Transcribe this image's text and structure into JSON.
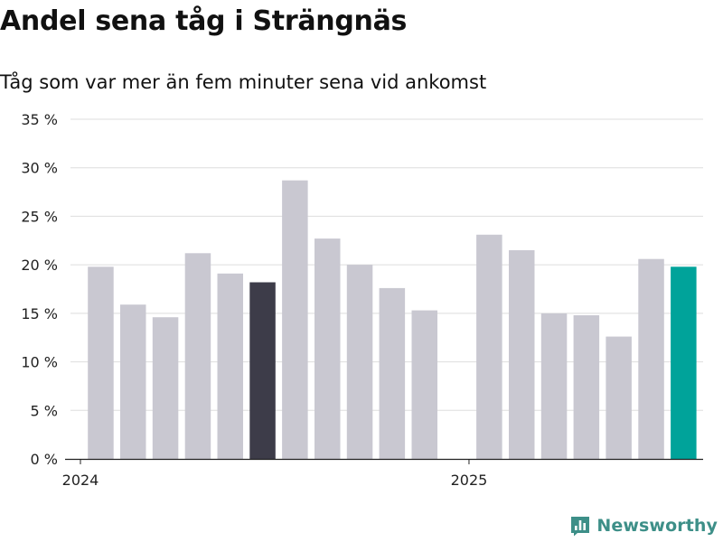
{
  "title": "Andel sena tåg i Strängnäs",
  "subtitle": "Tåg som var mer än fem minuter sena vid ankomst",
  "brand": {
    "name": "Newsworthy",
    "icon": "newsworthy-logo-icon",
    "color": "#3d8f88"
  },
  "chart_data": {
    "type": "bar",
    "x": [
      "2024-01",
      "2024-02",
      "2024-03",
      "2024-04",
      "2024-05",
      "2024-06",
      "2024-07",
      "2024-08",
      "2024-09",
      "2024-10",
      "2024-11",
      "2025-01",
      "2025-02",
      "2025-03",
      "2025-04",
      "2025-05",
      "2025-06",
      "2025-07"
    ],
    "values": [
      19.8,
      15.9,
      14.6,
      21.2,
      19.1,
      18.2,
      28.7,
      22.7,
      20.0,
      17.6,
      15.3,
      23.1,
      21.5,
      15.0,
      14.8,
      12.6,
      20.6,
      19.8
    ],
    "highlight": {
      "2024-06": "dark",
      "2025-07": "current"
    },
    "colors": {
      "default": "#c9c8d1",
      "dark": "#3d3c49",
      "current": "#00a39a"
    },
    "ylim": [
      0,
      35
    ],
    "y_ticks": [
      0,
      5,
      10,
      15,
      20,
      25,
      30,
      35
    ],
    "y_tick_labels": [
      "0 %",
      "5 %",
      "10 %",
      "15 %",
      "20 %",
      "25 %",
      "30 %",
      "35 %"
    ],
    "x_ticks": [
      {
        "x": "2024-01",
        "label": "2024"
      },
      {
        "x": "2025-01",
        "label": "2025"
      }
    ],
    "xlabel": "",
    "ylabel": "",
    "grid": true,
    "legend": "none"
  }
}
